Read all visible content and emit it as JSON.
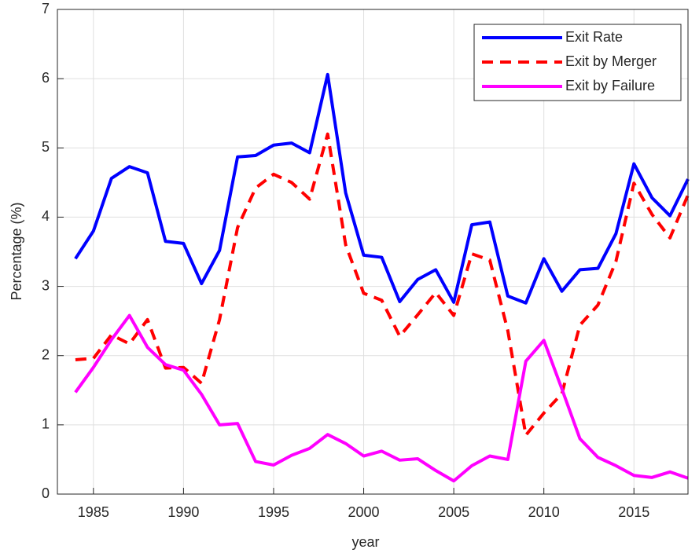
{
  "chart_data": {
    "type": "line",
    "xlabel": "year",
    "ylabel": "Percentage (%)",
    "x": [
      1984,
      1985,
      1986,
      1987,
      1988,
      1989,
      1990,
      1991,
      1992,
      1993,
      1994,
      1995,
      1996,
      1997,
      1998,
      1999,
      2000,
      2001,
      2002,
      2003,
      2004,
      2005,
      2006,
      2007,
      2008,
      2009,
      2010,
      2011,
      2012,
      2013,
      2014,
      2015,
      2016,
      2017,
      2018
    ],
    "series": [
      {
        "name": "Exit Rate",
        "color": "#0000ff",
        "style": "solid",
        "values": [
          3.4,
          3.8,
          4.56,
          4.73,
          4.64,
          3.65,
          3.62,
          3.04,
          3.52,
          4.87,
          4.89,
          5.04,
          5.07,
          4.93,
          6.06,
          4.35,
          3.45,
          3.42,
          2.78,
          3.1,
          3.24,
          2.77,
          3.89,
          3.93,
          2.86,
          2.76,
          3.4,
          2.93,
          3.24,
          3.26,
          3.76,
          4.77,
          4.28,
          4.02,
          4.55
        ]
      },
      {
        "name": "Exit by Merger",
        "color": "#ff0000",
        "style": "dashed",
        "values": [
          1.94,
          1.96,
          2.3,
          2.17,
          2.52,
          1.82,
          1.83,
          1.6,
          2.52,
          3.85,
          4.42,
          4.62,
          4.5,
          4.26,
          5.2,
          3.6,
          2.9,
          2.8,
          2.28,
          2.59,
          2.91,
          2.58,
          3.47,
          3.38,
          2.36,
          0.85,
          1.17,
          1.45,
          2.44,
          2.73,
          3.36,
          4.49,
          4.04,
          3.7,
          4.32
        ]
      },
      {
        "name": "Exit by Failure",
        "color": "#ff00ff",
        "style": "solid",
        "values": [
          1.47,
          1.83,
          2.23,
          2.58,
          2.12,
          1.87,
          1.79,
          1.44,
          1.0,
          1.02,
          0.47,
          0.42,
          0.56,
          0.66,
          0.86,
          0.73,
          0.55,
          0.62,
          0.49,
          0.51,
          0.34,
          0.19,
          0.41,
          0.55,
          0.5,
          1.92,
          2.22,
          1.52,
          0.8,
          0.53,
          0.41,
          0.27,
          0.24,
          0.32,
          0.23
        ]
      }
    ],
    "xlim": [
      1983,
      2018
    ],
    "xticks": [
      1985,
      1990,
      1995,
      2000,
      2005,
      2010,
      2015
    ],
    "ylim": [
      0,
      7
    ],
    "yticks": [
      0,
      1,
      2,
      3,
      4,
      5,
      6,
      7
    ],
    "grid": true,
    "legend": "upper right"
  }
}
